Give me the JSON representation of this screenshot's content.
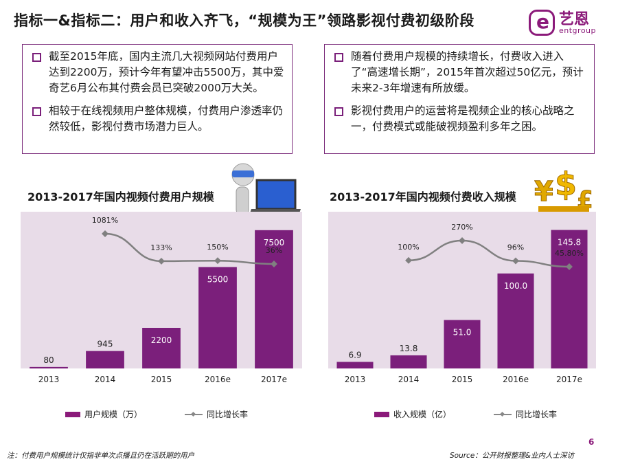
{
  "title": "指标一&指标二：用户和收入齐飞，“规模为王”领路影视付费初级阶段",
  "logo": {
    "cn": "艺恩",
    "en": "entgroup"
  },
  "left_box": [
    "截至2015年底，国内主流几大视频网站付费用户达到2200万，预计今年有望冲击5500万，其中爱奇艺6月公布其付费会员已突破2000万大关。",
    "相较于在线视频用户整体规模，付费用户渗透率仍然较低，影视付费市场潜力巨人。"
  ],
  "right_box": [
    "随着付费用户规模的持续增长，付费收入进入了“高速增长期”，2015年首次超过50亿元，预计未来2-3年增速有所放缓。",
    "影视付费用户的运营将是视频企业的核心战略之一，付费模式或能破视频盈利多年之困。"
  ],
  "colors": {
    "bar": "#7b1f7b",
    "line": "#808080",
    "plot_bg": "#e8dce8",
    "accent": "#8b1a7a"
  },
  "chart_data": [
    {
      "type": "bar",
      "title": "2013-2017年国内视频付费用户规模",
      "categories": [
        "2013",
        "2014",
        "2015",
        "2016e",
        "2017e"
      ],
      "series": [
        {
          "name": "用户规模（万）",
          "values": [
            80,
            945,
            2200,
            5500,
            7500
          ],
          "labels": [
            "80",
            "945",
            "2200",
            "5500",
            "7500"
          ]
        },
        {
          "name": "同比增长率",
          "type": "line",
          "values": [
            null,
            1081,
            133,
            150,
            36
          ],
          "labels": [
            "",
            "1081%",
            "133%",
            "150%",
            "36%"
          ]
        }
      ],
      "ylim": [
        0,
        8500
      ]
    },
    {
      "type": "bar",
      "title": "2013-2017年国内视频付费收入规模",
      "categories": [
        "2013",
        "2014",
        "2015",
        "2016e",
        "2017e"
      ],
      "series": [
        {
          "name": "收入规模（亿）",
          "values": [
            6.9,
            13.8,
            51.0,
            100.0,
            145.8
          ],
          "labels": [
            "6.9",
            "13.8",
            "51.0",
            "100.0",
            "145.8"
          ]
        },
        {
          "name": "同比增长率",
          "type": "line",
          "values": [
            null,
            100,
            270,
            96,
            45.8
          ],
          "labels": [
            "",
            "100%",
            "270%",
            "96%",
            "45.80%"
          ]
        }
      ],
      "ylim": [
        0,
        165
      ]
    }
  ],
  "footnote": "注：付费用户规模统计仅指非单次点播且仍在活跃期的用户",
  "source": "Source：公开财报整理&业内人士深访",
  "page_number": "6"
}
